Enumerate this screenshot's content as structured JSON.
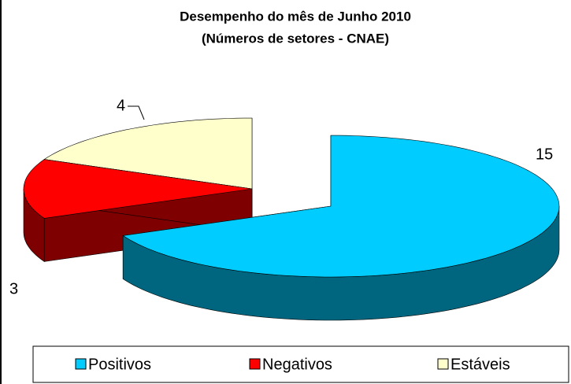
{
  "chart_data": {
    "type": "pie3d",
    "title": "Desempenho do mês de Junho 2010",
    "subtitle": "(Números de setores - CNAE)",
    "categories": [
      "Positivos",
      "Negativos",
      "Estáveis"
    ],
    "values": [
      15,
      3,
      4
    ],
    "colors": [
      "#00ccff",
      "#ff0000",
      "#ffffcc"
    ],
    "legend": "bottom"
  }
}
